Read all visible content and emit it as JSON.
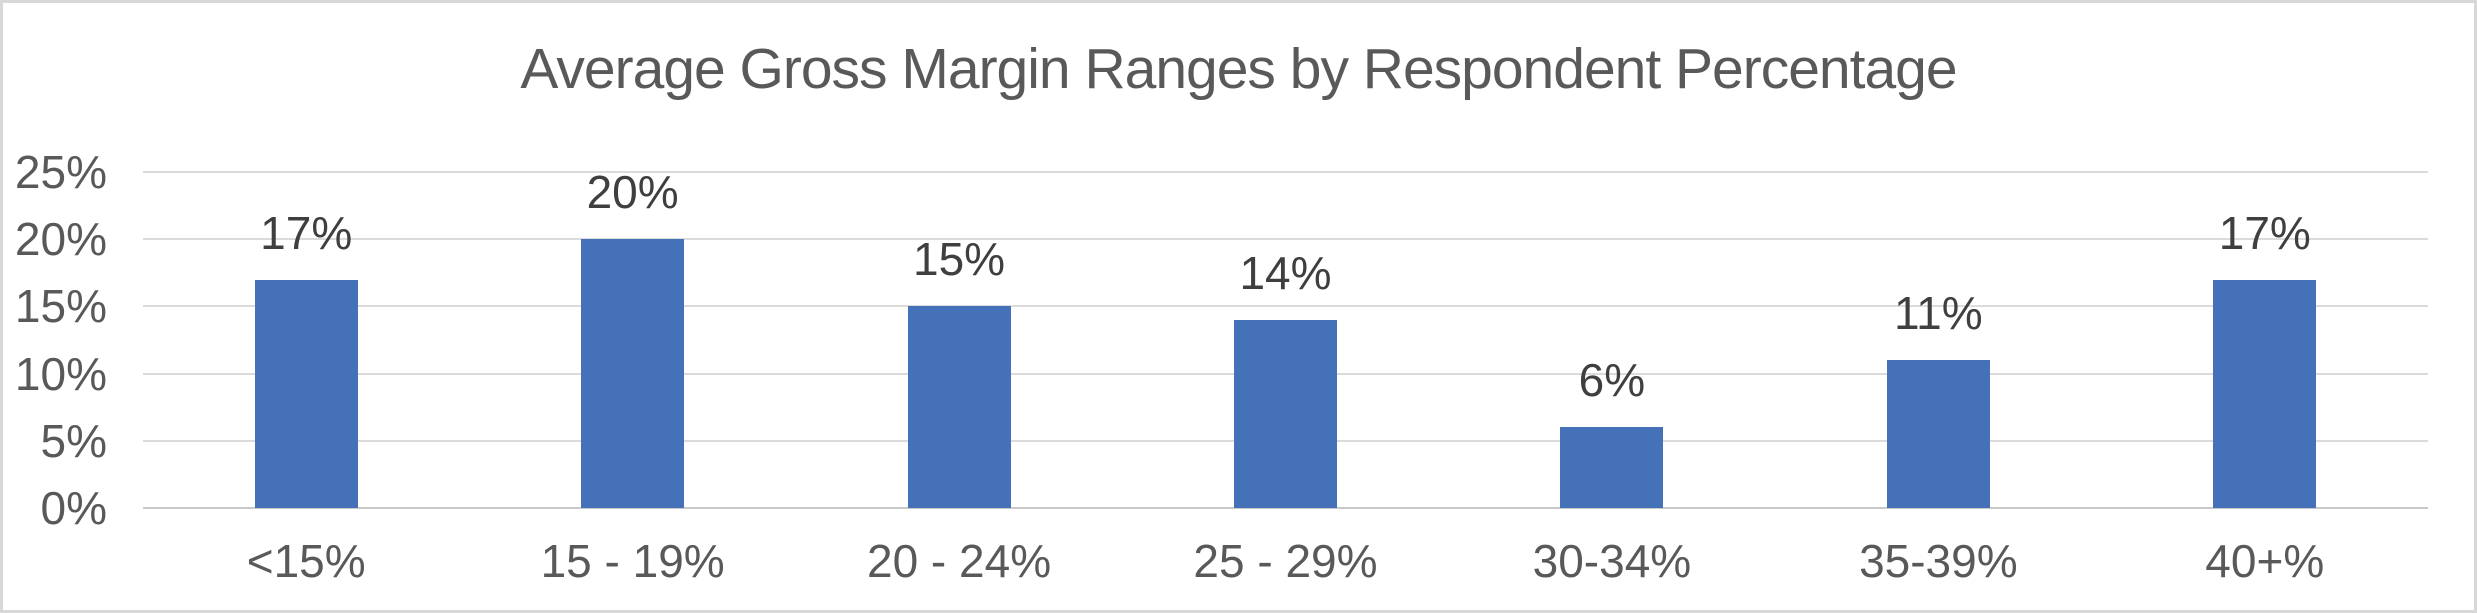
{
  "chart_data": {
    "type": "bar",
    "title": "Average Gross Margin Ranges by Respondent Percentage",
    "categories": [
      "<15%",
      "15 - 19%",
      "20 - 24%",
      "25 - 29%",
      "30-34%",
      "35-39%",
      "40+%"
    ],
    "values": [
      17,
      20,
      15,
      14,
      6,
      11,
      17
    ],
    "data_labels": [
      "17%",
      "20%",
      "15%",
      "14%",
      "6%",
      "11%",
      "17%"
    ],
    "xlabel": "",
    "ylabel": "",
    "ylim": [
      0,
      25
    ],
    "y_ticks": [
      {
        "value": 0,
        "label": "0%"
      },
      {
        "value": 5,
        "label": "5%"
      },
      {
        "value": 10,
        "label": "10%"
      },
      {
        "value": 15,
        "label": "15%"
      },
      {
        "value": 20,
        "label": "20%"
      },
      {
        "value": 25,
        "label": "25%"
      }
    ],
    "grid": true,
    "legend": "none",
    "colors": {
      "bar": "#4571B9",
      "gridline": "#DBDBDB",
      "axis_line": "#C9C9C9",
      "title_text": "#595959",
      "axis_text": "#595959",
      "data_label_text": "#3F3F3F",
      "frame_border": "#D8D8D8",
      "background": "#FFFFFF"
    }
  }
}
